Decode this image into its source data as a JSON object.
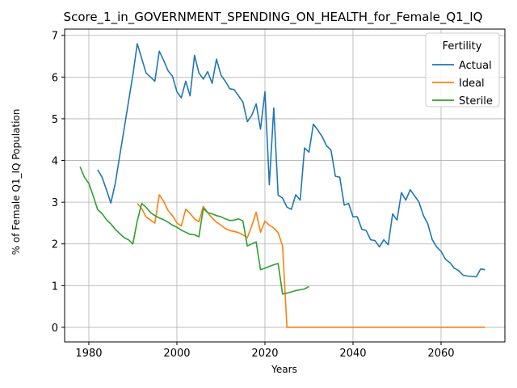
{
  "chart_data": {
    "type": "line",
    "title": "Score_1_in_GOVERNMENT_SPENDING_ON_HEALTH_for_Female_Q1_IQ",
    "xlabel": "Years",
    "ylabel": "% of Female Q1_IQ Population",
    "xlim": [
      1974.5,
      2074.5
    ],
    "ylim": [
      -0.35,
      7.15
    ],
    "xticks": [
      1980,
      2000,
      2020,
      2040,
      2060
    ],
    "yticks": [
      0,
      1,
      2,
      3,
      4,
      5,
      6,
      7
    ],
    "grid": true,
    "legend": {
      "title": "Fertility",
      "position": "top-right"
    },
    "series": [
      {
        "name": "Actual",
        "color": "#1f77b4",
        "x": [
          1982,
          1983,
          1984,
          1985,
          1986,
          1987,
          1988,
          1989,
          1990,
          1991,
          1992,
          1993,
          1994,
          1995,
          1996,
          1997,
          1998,
          1999,
          2000,
          2001,
          2002,
          2003,
          2004,
          2005,
          2006,
          2007,
          2008,
          2009,
          2010,
          2011,
          2012,
          2013,
          2014,
          2015,
          2016,
          2017,
          2018,
          2019,
          2020,
          2021,
          2022,
          2023,
          2024,
          2025,
          2026,
          2027,
          2028,
          2029,
          2030,
          2031,
          2032,
          2033,
          2034,
          2035,
          2036,
          2037,
          2038,
          2039,
          2040,
          2041,
          2042,
          2043,
          2044,
          2045,
          2046,
          2047,
          2048,
          2049,
          2050,
          2051,
          2052,
          2053,
          2054,
          2055,
          2056,
          2057,
          2058,
          2059,
          2060,
          2061,
          2062,
          2063,
          2064,
          2065,
          2066,
          2067,
          2068,
          2069,
          2070
        ],
        "y": [
          3.78,
          3.6,
          3.3,
          2.98,
          3.45,
          4.1,
          4.75,
          5.4,
          6.05,
          6.8,
          6.45,
          6.1,
          6.0,
          5.9,
          6.62,
          6.4,
          6.15,
          6.02,
          5.65,
          5.5,
          5.9,
          5.55,
          6.52,
          6.1,
          5.95,
          6.13,
          5.85,
          6.43,
          6.05,
          5.9,
          5.72,
          5.7,
          5.55,
          5.4,
          4.93,
          5.08,
          5.36,
          4.75,
          5.65,
          3.42,
          5.26,
          3.17,
          3.1,
          2.88,
          2.83,
          3.18,
          3.05,
          4.3,
          4.2,
          4.87,
          4.73,
          4.57,
          4.35,
          4.25,
          3.62,
          3.6,
          2.93,
          2.97,
          2.65,
          2.65,
          2.35,
          2.32,
          2.1,
          2.08,
          1.93,
          2.1,
          1.98,
          2.72,
          2.57,
          3.23,
          3.05,
          3.3,
          3.15,
          3.0,
          2.68,
          2.48,
          2.1,
          1.93,
          1.82,
          1.63,
          1.55,
          1.42,
          1.36,
          1.25,
          1.23,
          1.22,
          1.21,
          1.4,
          1.38
        ]
      },
      {
        "name": "Ideal",
        "color": "#ff7f0e",
        "x": [
          1991,
          1992,
          1993,
          1994,
          1995,
          1996,
          1997,
          1998,
          1999,
          2000,
          2001,
          2002,
          2003,
          2004,
          2005,
          2006,
          2007,
          2008,
          2009,
          2010,
          2011,
          2012,
          2013,
          2014,
          2015,
          2016,
          2017,
          2018,
          2019,
          2020,
          2021,
          2022,
          2023,
          2024,
          2025,
          2030,
          2040,
          2050,
          2060,
          2070
        ],
        "y": [
          2.97,
          2.85,
          2.65,
          2.57,
          2.5,
          3.18,
          3.02,
          2.8,
          2.68,
          2.5,
          2.43,
          2.83,
          2.73,
          2.6,
          2.53,
          2.9,
          2.75,
          2.62,
          2.52,
          2.45,
          2.37,
          2.32,
          2.3,
          2.27,
          2.22,
          2.15,
          2.43,
          2.76,
          2.28,
          2.55,
          2.45,
          2.38,
          2.27,
          1.95,
          0.0,
          0.0,
          0.0,
          0.0,
          0.0,
          0.0
        ]
      },
      {
        "name": "Sterile",
        "color": "#2ca02c",
        "x": [
          1978,
          1979,
          1980,
          1981,
          1982,
          1983,
          1984,
          1985,
          1986,
          1987,
          1988,
          1989,
          1990,
          1991,
          1992,
          1993,
          1994,
          1995,
          1996,
          1997,
          1998,
          1999,
          2000,
          2001,
          2002,
          2003,
          2004,
          2005,
          2006,
          2007,
          2008,
          2009,
          2010,
          2011,
          2012,
          2013,
          2014,
          2015,
          2016,
          2017,
          2018,
          2019,
          2020,
          2021,
          2022,
          2023,
          2024,
          2025,
          2026,
          2027,
          2028,
          2029,
          2030
        ],
        "y": [
          3.85,
          3.6,
          3.45,
          3.15,
          2.82,
          2.73,
          2.58,
          2.48,
          2.35,
          2.25,
          2.15,
          2.1,
          2.0,
          2.55,
          2.97,
          2.88,
          2.75,
          2.68,
          2.62,
          2.58,
          2.52,
          2.45,
          2.4,
          2.33,
          2.28,
          2.23,
          2.22,
          2.17,
          2.85,
          2.75,
          2.72,
          2.68,
          2.65,
          2.6,
          2.56,
          2.57,
          2.6,
          2.55,
          1.95,
          2.0,
          2.05,
          1.38,
          1.42,
          1.46,
          1.5,
          1.53,
          0.8,
          0.82,
          0.85,
          0.88,
          0.9,
          0.92,
          0.98
        ]
      }
    ]
  }
}
